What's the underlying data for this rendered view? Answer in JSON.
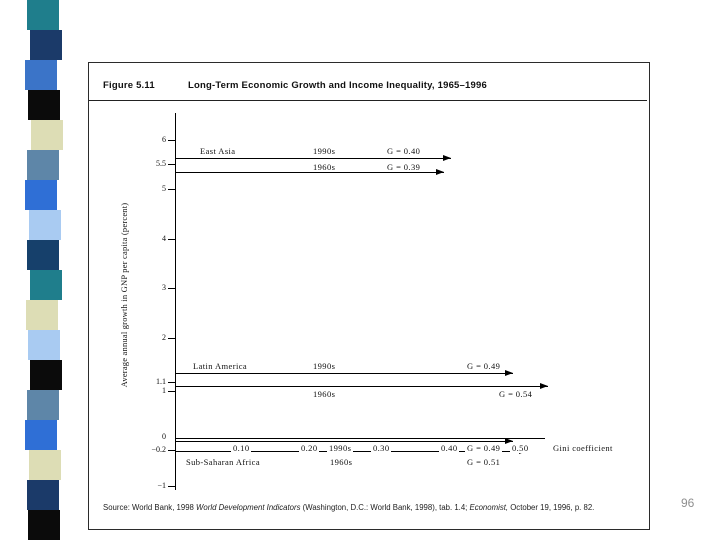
{
  "strip": {
    "colors": [
      "#1F7E8C",
      "#1B3A69",
      "#3B74C8",
      "#0B0B0B",
      "#DDDDB5",
      "#5E86A8",
      "#2F6FD6",
      "#A9CBF2",
      "#16406B",
      "#1F7E8C",
      "#DDDDB5",
      "#A9CBF2",
      "#0B0B0B",
      "#5E86A8",
      "#2F6FD6",
      "#DDDDB5",
      "#1B3A69",
      "#0B0B0B"
    ]
  },
  "figure": {
    "number": "Figure 5.11",
    "title": "Long-Term Economic Growth and Income Inequality, 1965–1996"
  },
  "axis": {
    "y_label": "Average annual growth in GNP per capita (percent)",
    "x_label": "Gini coefficient",
    "y_ticks": [
      "6",
      "5.5",
      "5",
      "4",
      "3",
      "2",
      "1.1",
      "1",
      "0",
      "−0.2",
      "−1"
    ],
    "x_ticks": [
      "0.10",
      "0.20",
      "0.30",
      "0.40",
      "0.50"
    ]
  },
  "regions": {
    "east_asia": {
      "name": "East Asia",
      "label_1990s": "1990s",
      "gini_1990s": "G = 0.40",
      "label_1960s": "1960s",
      "gini_1960s": "G = 0.39"
    },
    "latin_america": {
      "name": "Latin America",
      "label_1990s": "1990s",
      "gini_1990s": "G = 0.49",
      "label_1960s": "1960s",
      "gini_1960s": "G = 0.54"
    },
    "sub_saharan_africa": {
      "name": "Sub-Saharan Africa",
      "label_1990s": "1990s",
      "gini_1990s": "G = 0.49",
      "label_1960s": "1960s",
      "gini_1960s": "G = 0.51"
    }
  },
  "source": {
    "parts": [
      "Source: World Bank, 1998 ",
      "World Development Indicators",
      " (Washington, D.C.: World Bank, 1998), tab. 1.4; ",
      "Economist,",
      " October 19, 1996, p. 82."
    ]
  },
  "page_number": "96",
  "chart_data": {
    "type": "scatter",
    "title": "Long-Term Economic Growth and Income Inequality, 1965–1996",
    "xlabel": "Gini coefficient",
    "ylabel": "Average annual growth in GNP per capita (percent)",
    "xlim": [
      0,
      0.55
    ],
    "ylim": [
      -1,
      6
    ],
    "x_ticks": [
      0.1,
      0.2,
      0.3,
      0.4,
      0.5
    ],
    "y_ticks": [
      6,
      5.5,
      5,
      4,
      3,
      2,
      1.1,
      1,
      0,
      -0.2,
      -1
    ],
    "grid": false,
    "legend_position": "none",
    "note": "Each observation is drawn as a horizontal arrow from the vertical axis out to its Gini coefficient, at the height of its average annual growth rate",
    "series": [
      {
        "name": "East Asia",
        "points": [
          {
            "decade": "1990s",
            "growth_pct": 5.7,
            "gini": 0.4
          },
          {
            "decade": "1960s",
            "growth_pct": 5.5,
            "gini": 0.39
          }
        ]
      },
      {
        "name": "Latin America",
        "points": [
          {
            "decade": "1990s",
            "growth_pct": 1.3,
            "gini": 0.49
          },
          {
            "decade": "1960s",
            "growth_pct": 1.1,
            "gini": 0.54
          }
        ]
      },
      {
        "name": "Sub-Saharan Africa",
        "points": [
          {
            "decade": "1990s",
            "growth_pct": 0.0,
            "gini": 0.49
          },
          {
            "decade": "1960s",
            "growth_pct": -0.2,
            "gini": 0.51
          }
        ]
      }
    ]
  }
}
